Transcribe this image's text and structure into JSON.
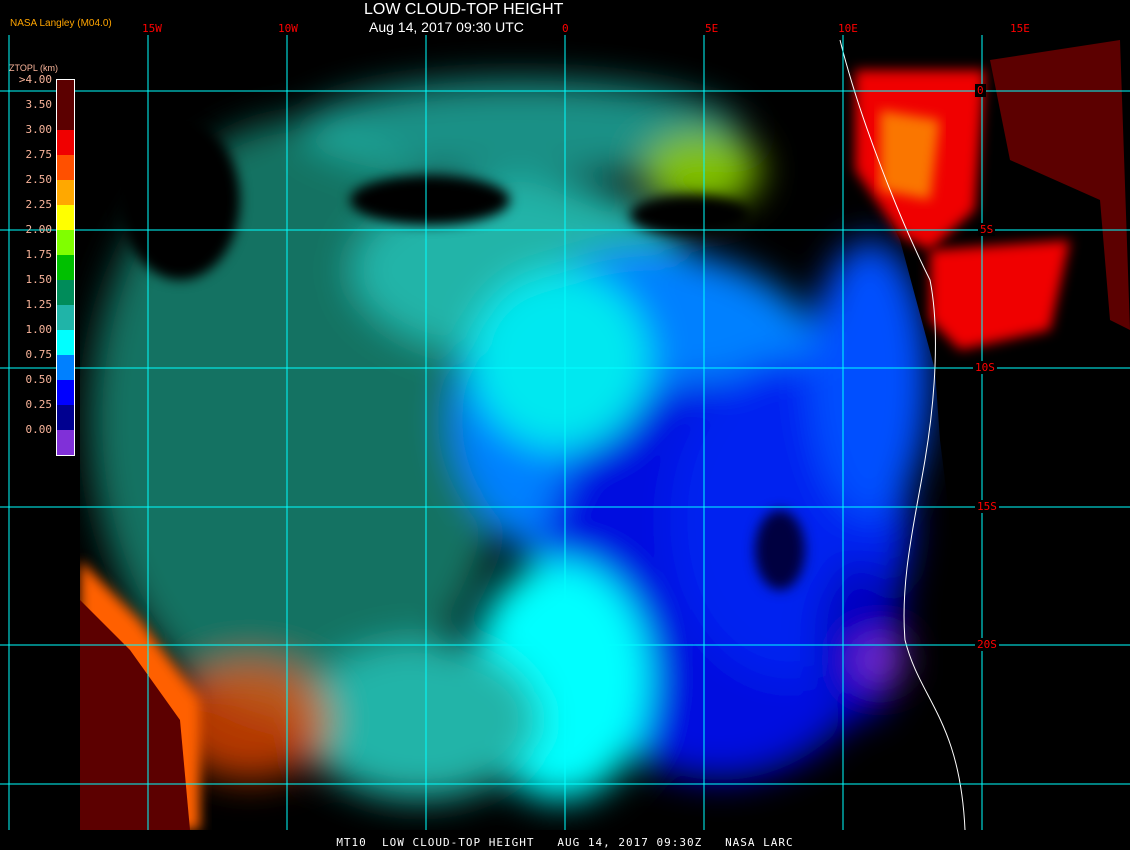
{
  "header": {
    "title": "LOW CLOUD-TOP HEIGHT",
    "datetime": "Aug 14, 2017 09:30 UTC",
    "credit": "NASA Langley (M04.0)"
  },
  "longitude_labels": [
    "15W",
    "10W",
    "0",
    "5E",
    "10E",
    "15E"
  ],
  "latitude_labels": [
    "0",
    "5S",
    "10S",
    "15S",
    "20S"
  ],
  "legend": {
    "title": "ZTOPL (km)",
    "labels": [
      ">4.00",
      "3.50",
      "3.00",
      "2.75",
      "2.50",
      "2.25",
      "2.00",
      "1.75",
      "1.50",
      "1.25",
      "1.00",
      "0.75",
      "0.50",
      "0.25",
      "0.00"
    ],
    "colors": [
      "#5c0000",
      "#5c0000",
      "#f00000",
      "#ff5000",
      "#ffa800",
      "#ffff00",
      "#80ff00",
      "#00c000",
      "#008c5a",
      "#20b4a8",
      "#00ffff",
      "#0080ff",
      "#0000ff",
      "#000090",
      "#8030d8"
    ]
  },
  "footer": {
    "text": "MT10  LOW CLOUD-TOP HEIGHT   AUG 14, 2017 09:30Z   NASA LARC"
  },
  "colors": {
    "grid": "#00ffff",
    "labels": "#ff0000",
    "background": "#000000"
  }
}
